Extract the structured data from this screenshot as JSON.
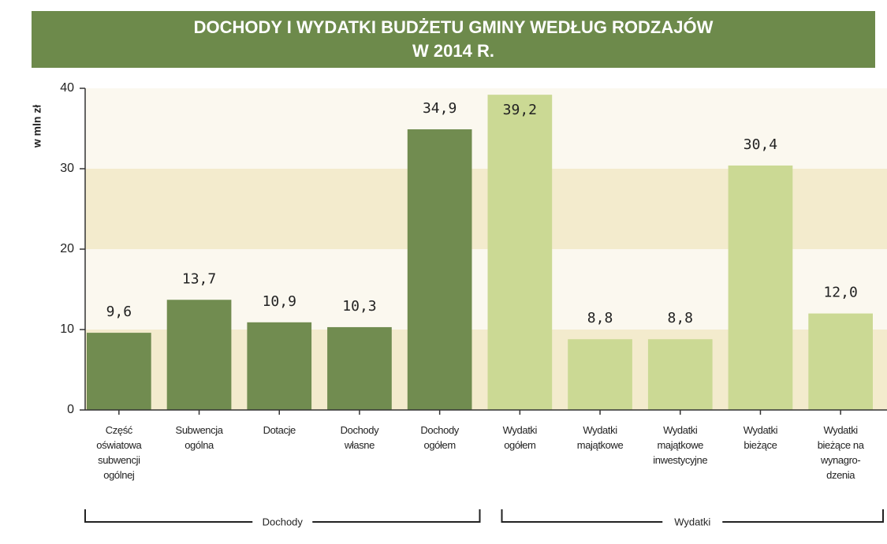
{
  "chart_data": {
    "type": "bar",
    "title": [
      "DOCHODY I WYDATKI BUDŻETU GMINY WEDŁUG RODZAJÓW",
      "W 2014 R."
    ],
    "y_axis_label": "w mln zł",
    "categories": [
      "Część\noświatowa\nsubwencji\nogólnej",
      "Subwencja\nogólna",
      "Dotacje",
      "Dochody\nwłasne",
      "Dochody\nogółem",
      "Wydatki\nogółem",
      "Wydatki\nmajątkowe",
      "Wydatki\nmajątkowe\ninwestycyjne",
      "Wydatki\nbieżące",
      "Wydatki\nbieżące na\nwynagro-\ndzenia"
    ],
    "values": [
      9.6,
      13.7,
      10.9,
      10.3,
      34.9,
      39.2,
      8.8,
      8.8,
      30.4,
      12.0
    ],
    "value_labels": [
      "9,6",
      "13,7",
      "10,9",
      "10,3",
      "34,9",
      "39,2",
      "8,8",
      "8,8",
      "30,4",
      "12,0"
    ],
    "colors": [
      "#718c50",
      "#718c50",
      "#718c50",
      "#718c50",
      "#718c50",
      "#cbd994",
      "#cbd994",
      "#cbd994",
      "#cbd994",
      "#cbd994"
    ],
    "groups": [
      "Dochody",
      "Wydatki"
    ],
    "ylim": [
      0,
      40
    ],
    "yticks": [
      0,
      10,
      20,
      30,
      40
    ],
    "band_colors": [
      "#f3ebcd",
      "#fbf8ef"
    ]
  }
}
